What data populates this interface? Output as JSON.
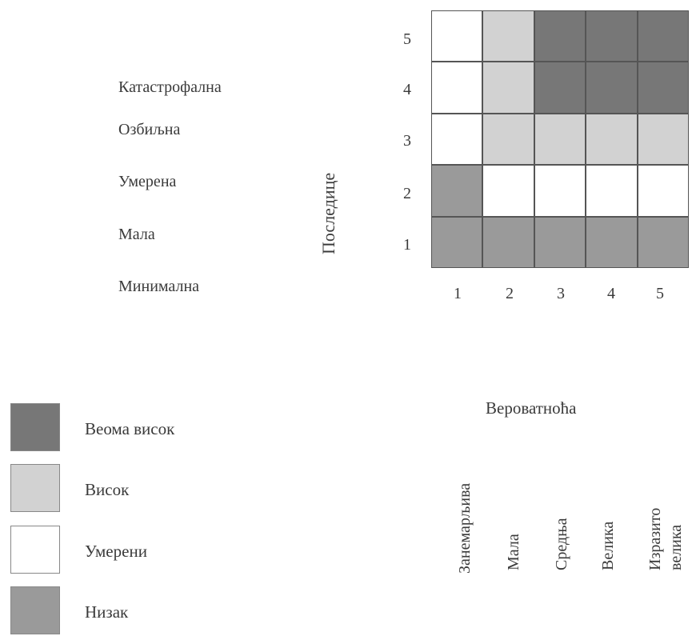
{
  "severity_levels": [
    "Катастрофална",
    "Озбиљна",
    "Умерена",
    "Мала",
    "Минимална"
  ],
  "consequence_label": "Последице",
  "probability_label": "Вероватноћа",
  "probability_levels": [
    "Занемарљива",
    "Мала",
    "Средња",
    "Велика",
    "Изразито",
    "велика"
  ],
  "risk_colors": {
    "very_high": "#777777",
    "high": "#d2d2d2",
    "moderate": "#ffffff",
    "low": "#9a9a9a"
  },
  "legend": [
    {
      "key": "very_high",
      "label": "Веома висок"
    },
    {
      "key": "high",
      "label": "Висок"
    },
    {
      "key": "moderate",
      "label": "Умерени"
    },
    {
      "key": "low",
      "label": "Низак"
    }
  ],
  "chart_data": {
    "type": "heatmap",
    "x_ticks": [
      "1",
      "2",
      "3",
      "4",
      "5"
    ],
    "y_ticks": [
      "5",
      "4",
      "3",
      "2",
      "1"
    ],
    "xlabel": "Вероватноћа",
    "ylabel": "Последице",
    "rows": [
      {
        "consequence": 5,
        "cells": [
          "moderate",
          "high",
          "very_high",
          "very_high",
          "very_high"
        ]
      },
      {
        "consequence": 4,
        "cells": [
          "moderate",
          "high",
          "very_high",
          "very_high",
          "very_high"
        ]
      },
      {
        "consequence": 3,
        "cells": [
          "moderate",
          "high",
          "high",
          "high",
          "high"
        ]
      },
      {
        "consequence": 2,
        "cells": [
          "low",
          "moderate",
          "moderate",
          "moderate",
          "moderate"
        ]
      },
      {
        "consequence": 1,
        "cells": [
          "low",
          "low",
          "low",
          "low",
          "low"
        ]
      }
    ]
  }
}
